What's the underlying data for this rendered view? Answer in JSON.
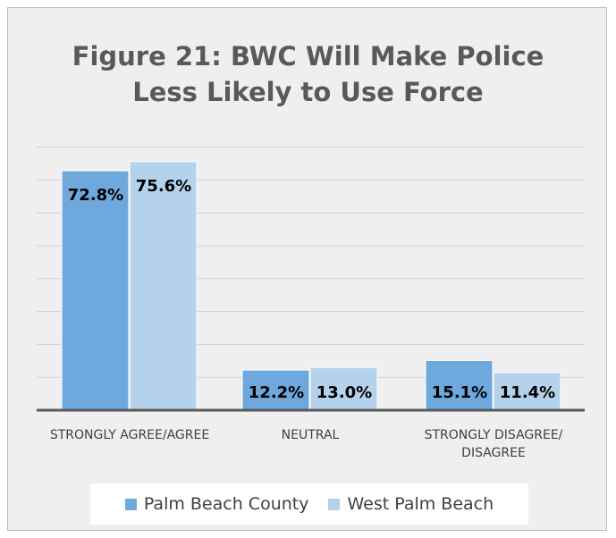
{
  "chart_data": {
    "type": "bar",
    "title_lines": [
      "Figure 21: BWC Will Make Police",
      "Less Likely to Use Force"
    ],
    "categories": [
      [
        "STRONGLY AGREE/AGREE"
      ],
      [
        "NEUTRAL"
      ],
      [
        "STRONGLY DISAGREE/",
        "DISAGREE"
      ]
    ],
    "series": [
      {
        "name": "Palm Beach County",
        "values": [
          72.8,
          12.2,
          15.1
        ],
        "labels": [
          "72.8%",
          "12.2%",
          "15.1%"
        ],
        "color": "#6fa8dc"
      },
      {
        "name": "West Palm Beach",
        "values": [
          75.6,
          13.0,
          11.4
        ],
        "labels": [
          "75.6%",
          "13.0%",
          "11.4%"
        ],
        "color": "#b4d2ec"
      }
    ],
    "ylim": [
      0,
      80
    ],
    "y_gridline_step": 10,
    "grid": true,
    "legend_position": "bottom"
  }
}
